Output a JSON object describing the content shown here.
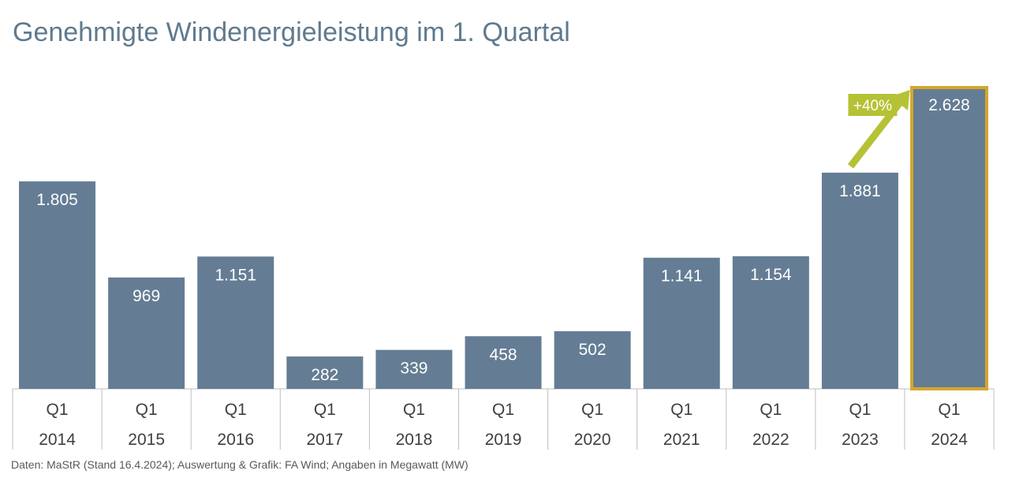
{
  "chart_data": {
    "type": "bar",
    "title": "Genehmigte Windenergieleistung im 1. Quartal",
    "categories": [
      [
        "Q1",
        "2014"
      ],
      [
        "Q1",
        "2015"
      ],
      [
        "Q1",
        "2016"
      ],
      [
        "Q1",
        "2017"
      ],
      [
        "Q1",
        "2018"
      ],
      [
        "Q1",
        "2019"
      ],
      [
        "Q1",
        "2020"
      ],
      [
        "Q1",
        "2021"
      ],
      [
        "Q1",
        "2022"
      ],
      [
        "Q1",
        "2023"
      ],
      [
        "Q1",
        "2024"
      ]
    ],
    "values": [
      1805,
      969,
      1151,
      282,
      339,
      458,
      502,
      1141,
      1154,
      1881,
      2628
    ],
    "labels": [
      "1.805",
      "969",
      "1.151",
      "282",
      "339",
      "458",
      "502",
      "1.141",
      "1.154",
      "1.881",
      "2.628"
    ],
    "ylim": [
      0,
      2628
    ],
    "xlabel": "",
    "ylabel": "",
    "highlight_index": 10,
    "annotation": {
      "text": "+40%",
      "from_index": 9,
      "to_index": 10
    },
    "colors": {
      "bar": "#647d94",
      "highlight_border": "#d4a72c",
      "arrow": "#b5c235",
      "title": "#5f7a8e"
    }
  },
  "footer": {
    "source": "Daten: MaStR (Stand 16.4.2024); Auswertung & Grafik: FA Wind; Angaben in Megawatt (MW)"
  }
}
